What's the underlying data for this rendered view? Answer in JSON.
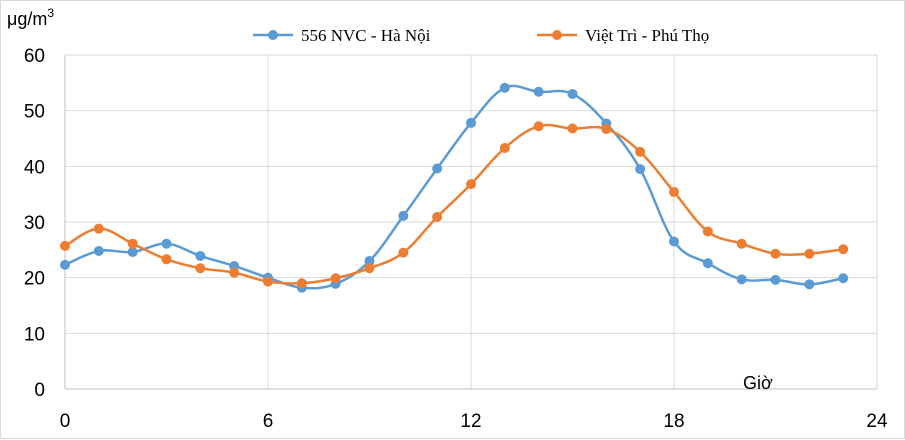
{
  "chart_data": {
    "type": "line",
    "ylabel": "μg/m",
    "ylabel_sup": "3",
    "xlabel": "Giờ",
    "x": [
      0,
      1,
      2,
      3,
      4,
      5,
      6,
      7,
      8,
      9,
      10,
      11,
      12,
      13,
      14,
      15,
      16,
      17,
      18,
      19,
      20,
      21,
      22,
      23
    ],
    "xlim": [
      0,
      24
    ],
    "ylim": [
      0,
      60
    ],
    "xticks": [
      0,
      6,
      12,
      18,
      24
    ],
    "yticks": [
      0,
      10,
      20,
      30,
      40,
      50,
      60
    ],
    "grid": true,
    "legend_position": "top-center",
    "series": [
      {
        "name": "556 NVC - Hà Nội",
        "color": "#5B9BD5",
        "values": [
          22.3,
          24.8,
          24.6,
          26.1,
          23.9,
          22.1,
          20.0,
          18.2,
          18.9,
          23.0,
          31.1,
          39.6,
          47.8,
          54.1,
          53.4,
          53.0,
          47.7,
          39.5,
          26.5,
          22.6,
          19.7,
          19.6,
          18.8,
          19.9
        ]
      },
      {
        "name": "Việt Trì - Phú Thọ",
        "color": "#ED7D31",
        "values": [
          25.7,
          28.8,
          26.1,
          23.3,
          21.7,
          20.9,
          19.3,
          19.0,
          19.9,
          21.7,
          24.5,
          30.9,
          36.8,
          43.3,
          47.2,
          46.8,
          46.7,
          42.6,
          35.4,
          28.3,
          26.1,
          24.3,
          24.3,
          25.1
        ]
      }
    ]
  }
}
